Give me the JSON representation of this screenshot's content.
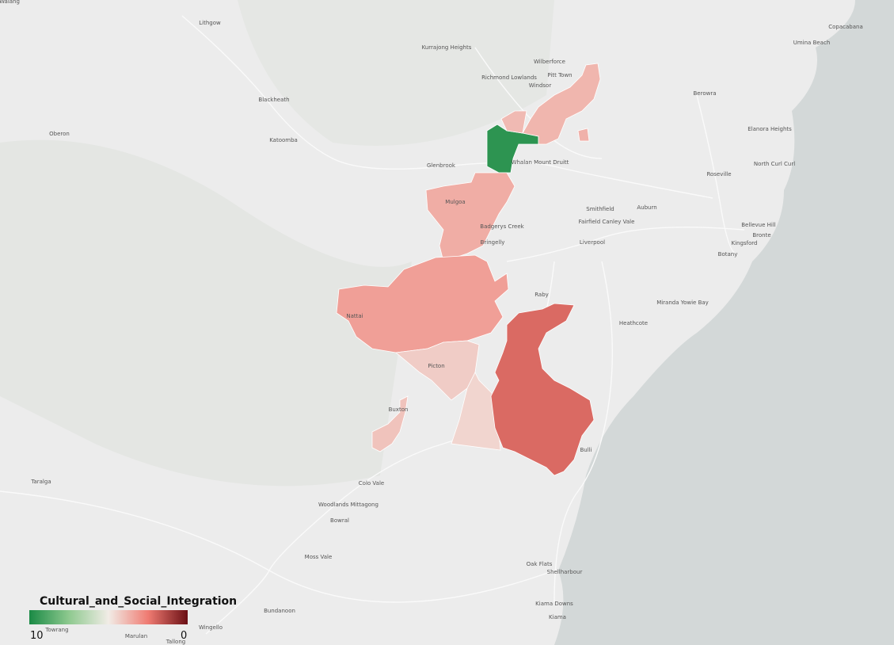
{
  "map": {
    "legend": {
      "title": "Cultural_and_Social_Integration",
      "max": 10,
      "min": 0,
      "colors": [
        "#1a8a45",
        "#8ec98f",
        "#f1ece6",
        "#ef7b72",
        "#6b0f14"
      ]
    },
    "regions": [
      {
        "value": 9.6
      },
      {
        "value": 3.8
      },
      {
        "value": 3.9
      },
      {
        "value": 3.6
      },
      {
        "value": 3.3
      },
      {
        "value": 4.3
      },
      {
        "value": 4.5
      },
      {
        "value": 2.1
      },
      {
        "value": 4.1
      },
      {
        "value": 3.7
      }
    ],
    "places": [
      "Walang",
      "Lithgow",
      "Kurrajong Heights",
      "Wilberforce",
      "Richmond Lowlands",
      "Pitt Town",
      "Windsor",
      "Blackheath",
      "Berowra",
      "Oberon",
      "Katoomba",
      "Elanora Heights",
      "Whalan Mount Druitt",
      "Glenbrook",
      "North Curl Curl",
      "Roseville",
      "Mulgoa",
      "Smithfield",
      "Auburn",
      "Badgerys Creek",
      "Fairfield Canley Vale",
      "Bellevue Hill",
      "Bronte",
      "Bringelly",
      "Liverpool",
      "Kingsford",
      "Botany",
      "Raby",
      "Miranda Yowie Bay",
      "Nattai",
      "Heathcote",
      "Picton",
      "Buxton",
      "Bulli",
      "Taralga",
      "Colo Vale",
      "Woodlands Mittagong",
      "Bowral",
      "Moss Vale",
      "Oak Flats",
      "Shellharbour",
      "Bundanoon",
      "Kiama Downs",
      "Kiama",
      "Wingello",
      "Towrang",
      "Marulan",
      "Tallong",
      "Copacabana",
      "Umina Beach"
    ]
  }
}
